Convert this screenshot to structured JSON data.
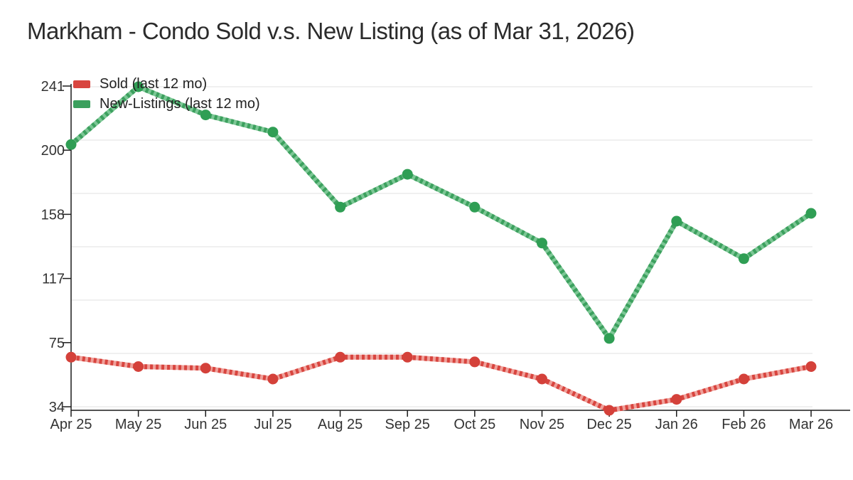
{
  "title": "Markham - Condo Sold v.s. New Listing (as of Mar 31, 2026)",
  "chart_data": {
    "type": "line",
    "categories": [
      "Apr 25",
      "May 25",
      "Jun 25",
      "Jul 25",
      "Aug 25",
      "Sep 25",
      "Oct 25",
      "Nov 25",
      "Dec 25",
      "Jan 26",
      "Feb 26",
      "Mar 26"
    ],
    "series": [
      {
        "name": "Sold (last 12 mo)",
        "color": "#d8453f",
        "color_light": "#efa09a",
        "point_color": "#d4413a",
        "values": [
          68,
          62,
          61,
          54,
          68,
          68,
          65,
          54,
          34,
          41,
          54,
          62
        ]
      },
      {
        "name": "New-Listings (last 12 mo)",
        "color": "#3ca05e",
        "color_light": "#7cc795",
        "point_color": "#2f9e54",
        "values": [
          204,
          241,
          223,
          212,
          164,
          185,
          164,
          141,
          80,
          155,
          131,
          160
        ]
      }
    ],
    "y_ticks": [
      241,
      200,
      158,
      117,
      75,
      34
    ],
    "ylim": [
      34,
      241
    ],
    "xlabel": "",
    "ylabel": "",
    "grid": true,
    "grid_color": "#e6e6e6",
    "axis_color": "#1c1c1c",
    "tick_label_color": "#333333",
    "legend_position": "top-left"
  }
}
